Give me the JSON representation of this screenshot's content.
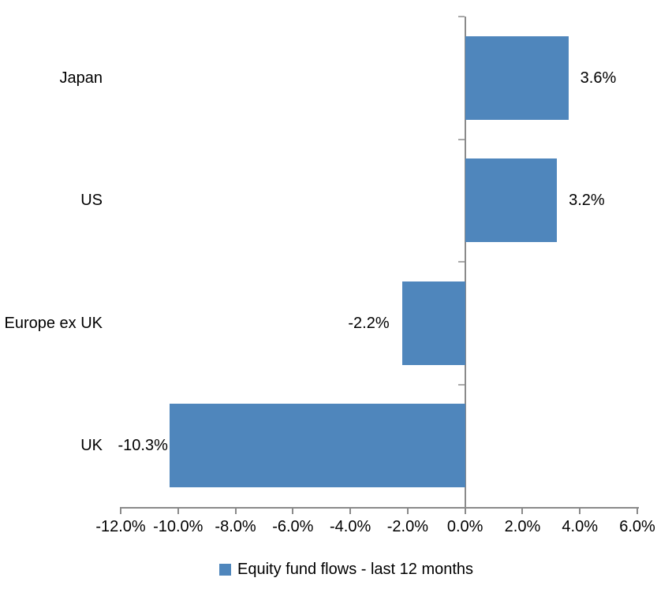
{
  "chart_data": {
    "type": "bar",
    "orientation": "horizontal",
    "title": "",
    "categories": [
      "Japan",
      "US",
      "Europe ex UK",
      "UK"
    ],
    "values": [
      3.6,
      3.2,
      -2.2,
      -10.3
    ],
    "data_labels": [
      "3.6%",
      "3.2%",
      "-2.2%",
      "-10.3%"
    ],
    "series_name": "Equity fund flows - last 12 months",
    "xlim": [
      -12,
      6
    ],
    "x_ticks": [
      -12,
      -10,
      -8,
      -6,
      -4,
      -2,
      0,
      2,
      4,
      6
    ],
    "x_tick_labels": [
      "-12.0%",
      "-10.0%",
      "-8.0%",
      "-6.0%",
      "-4.0%",
      "-2.0%",
      "0.0%",
      "2.0%",
      "4.0%",
      "6.0%"
    ],
    "grid": false,
    "legend_position": "bottom",
    "bar_color": "#4F86BC",
    "axis_color": "#8A8A8A",
    "tick_color": "#A9A9A9",
    "text_color": "#000000",
    "background_color": "#FFFFFF"
  },
  "legend": {
    "label": "Equity fund flows - last 12 months"
  }
}
